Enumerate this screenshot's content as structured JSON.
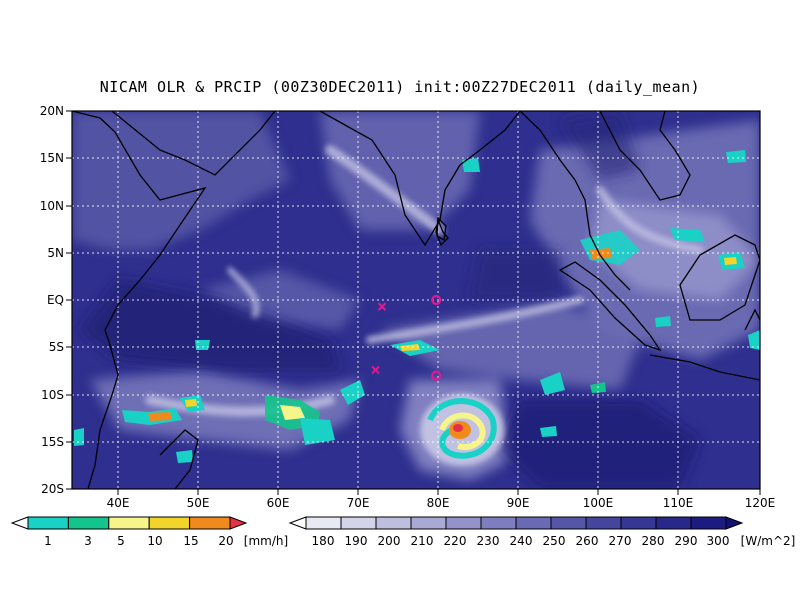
{
  "title": "NICAM OLR & PRCIP (00Z30DEC2011) init:00Z27DEC2011 (daily_mean)",
  "map": {
    "lat_labels": [
      "20N",
      "15N",
      "10N",
      "5N",
      "EQ",
      "5S",
      "10S",
      "15S",
      "20S"
    ],
    "lon_labels": [
      "40E",
      "50E",
      "60E",
      "70E",
      "80E",
      "90E",
      "100E",
      "110E",
      "120E"
    ],
    "colors": {
      "ocean_base": "#2e2f8e",
      "clear_dark": "#1f1f74",
      "cloud_light": "#b6b6dc",
      "coastline": "#000000",
      "grid": "#ffffff",
      "marker": "#e0198e"
    },
    "markers": [
      {
        "symbol": "x",
        "lon": 73.3,
        "lat": -0.7
      },
      {
        "symbol": "o",
        "lon": 80.0,
        "lat": 0.0
      },
      {
        "symbol": "x",
        "lon": 72.5,
        "lat": -7.4
      },
      {
        "symbol": "o",
        "lon": 80.0,
        "lat": -8.0
      }
    ]
  },
  "precip_colorbar": {
    "labels": [
      "1",
      "3",
      "5",
      "10",
      "15",
      "20"
    ],
    "unit": "[mm/h]",
    "colors": [
      "#ffffff",
      "#1ad1c6",
      "#13c48c",
      "#f5f58c",
      "#f2d42a",
      "#f08a1c",
      "#e6304a"
    ]
  },
  "olr_colorbar": {
    "labels": [
      "180",
      "190",
      "200",
      "210",
      "220",
      "230",
      "240",
      "250",
      "260",
      "270",
      "280",
      "290",
      "300"
    ],
    "unit": "[W/m^2]",
    "colors": [
      "#ffffff",
      "#e9e9f4",
      "#d3d3ea",
      "#bebedf",
      "#a9a9d5",
      "#9393ca",
      "#7e7ebf",
      "#6969b4",
      "#5656a8",
      "#45459e",
      "#363694",
      "#28288a",
      "#1c1c80",
      "#121277"
    ]
  }
}
